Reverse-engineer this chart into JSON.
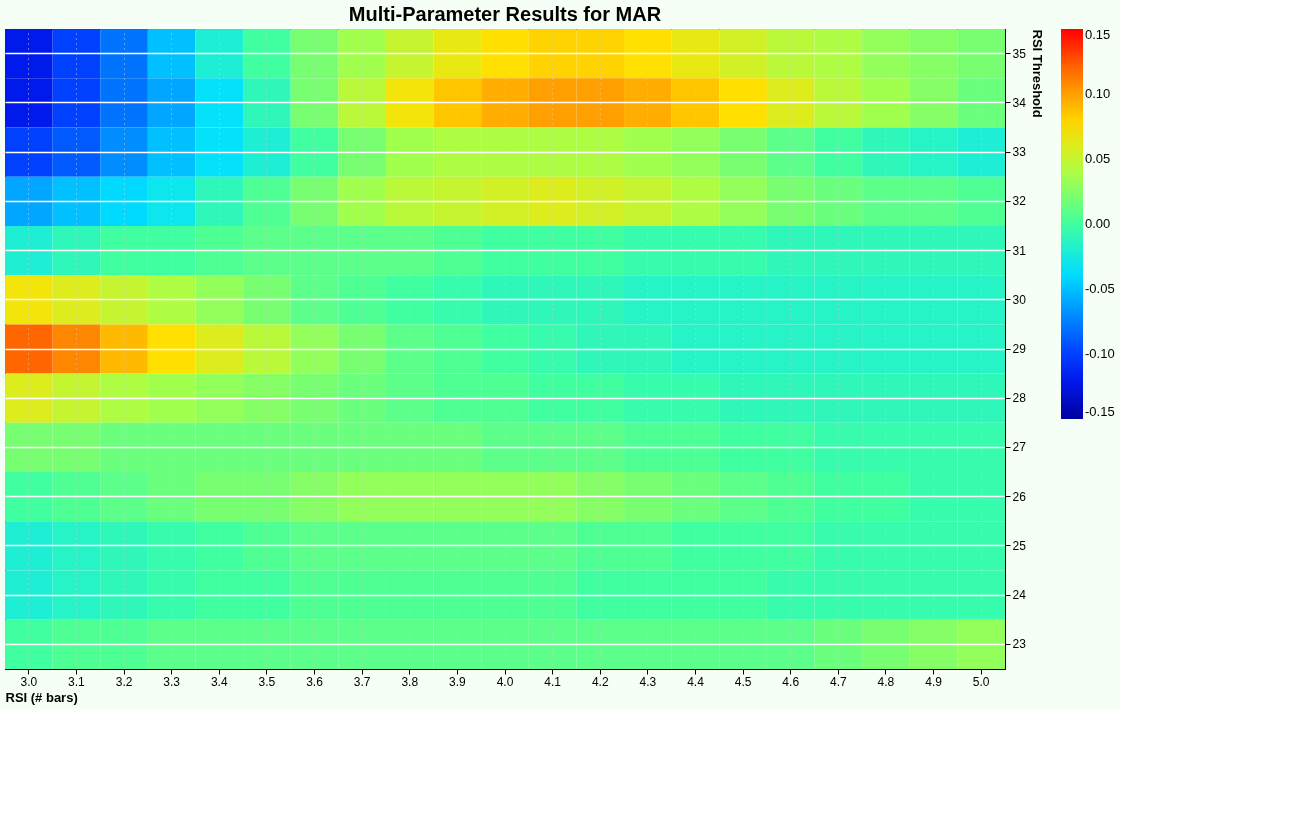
{
  "chart_data": {
    "type": "heatmap",
    "title": "Multi-Parameter Results for MAR",
    "xlabel": "RSI (# bars)",
    "ylabel": "RSI Threshold",
    "categories": [
      "3.0",
      "3.1",
      "3.2",
      "3.3",
      "3.4",
      "3.5",
      "3.6",
      "3.7",
      "3.8",
      "3.9",
      "4.0",
      "4.1",
      "4.2",
      "4.3",
      "4.4",
      "4.5",
      "4.6",
      "4.7",
      "4.8",
      "4.9",
      "5.0"
    ],
    "y_categories": [
      "35",
      "34",
      "33",
      "32",
      "31",
      "30",
      "29",
      "28",
      "27",
      "26",
      "25",
      "24",
      "23"
    ],
    "cells": [
      [
        -0.12,
        -0.1,
        -0.08,
        -0.05,
        -0.02,
        0.0,
        0.02,
        0.035,
        0.05,
        0.065,
        0.075,
        0.08,
        0.08,
        0.075,
        0.065,
        0.055,
        0.045,
        0.04,
        0.03,
        0.025,
        0.02
      ],
      [
        -0.12,
        -0.1,
        -0.08,
        -0.06,
        -0.035,
        -0.01,
        0.02,
        0.045,
        0.07,
        0.085,
        0.095,
        0.1,
        0.1,
        0.095,
        0.085,
        0.075,
        0.06,
        0.045,
        0.035,
        0.025,
        0.015
      ],
      [
        -0.1,
        -0.09,
        -0.07,
        -0.05,
        -0.035,
        -0.02,
        0.0,
        0.02,
        0.035,
        0.04,
        0.04,
        0.04,
        0.04,
        0.035,
        0.03,
        0.02,
        0.01,
        0.0,
        -0.01,
        -0.015,
        -0.02
      ],
      [
        -0.06,
        -0.05,
        -0.04,
        -0.03,
        -0.01,
        0.005,
        0.02,
        0.035,
        0.045,
        0.05,
        0.055,
        0.06,
        0.055,
        0.05,
        0.04,
        0.03,
        0.02,
        0.015,
        0.01,
        0.01,
        0.005
      ],
      [
        -0.02,
        -0.01,
        0.0,
        0.0,
        0.005,
        0.01,
        0.01,
        0.01,
        0.01,
        0.005,
        0.0,
        0.0,
        0.0,
        -0.005,
        -0.005,
        -0.005,
        -0.01,
        -0.01,
        -0.01,
        -0.01,
        -0.01
      ],
      [
        0.07,
        0.06,
        0.05,
        0.04,
        0.03,
        0.02,
        0.01,
        0.005,
        0.0,
        -0.005,
        -0.01,
        -0.01,
        -0.01,
        -0.015,
        -0.015,
        -0.015,
        -0.015,
        -0.015,
        -0.015,
        -0.015,
        -0.015
      ],
      [
        0.12,
        0.11,
        0.09,
        0.075,
        0.06,
        0.045,
        0.03,
        0.02,
        0.01,
        0.005,
        0.0,
        -0.005,
        -0.01,
        -0.01,
        -0.015,
        -0.015,
        -0.015,
        -0.015,
        -0.015,
        -0.015,
        -0.015
      ],
      [
        0.06,
        0.05,
        0.04,
        0.035,
        0.03,
        0.025,
        0.02,
        0.015,
        0.01,
        0.005,
        0.005,
        0.0,
        0.0,
        -0.005,
        -0.005,
        -0.01,
        -0.01,
        -0.01,
        -0.01,
        -0.01,
        -0.01
      ],
      [
        0.02,
        0.02,
        0.015,
        0.015,
        0.015,
        0.015,
        0.015,
        0.015,
        0.015,
        0.015,
        0.01,
        0.01,
        0.01,
        0.005,
        0.005,
        0.0,
        0.0,
        -0.005,
        -0.005,
        -0.005,
        -0.005
      ],
      [
        0.0,
        0.005,
        0.01,
        0.015,
        0.02,
        0.02,
        0.025,
        0.03,
        0.03,
        0.03,
        0.03,
        0.03,
        0.025,
        0.02,
        0.015,
        0.01,
        0.005,
        0.0,
        0.0,
        -0.005,
        -0.005
      ],
      [
        -0.02,
        -0.015,
        -0.01,
        -0.005,
        0.0,
        0.005,
        0.01,
        0.01,
        0.01,
        0.01,
        0.01,
        0.01,
        0.005,
        0.005,
        0.0,
        0.0,
        0.0,
        -0.005,
        -0.005,
        -0.005,
        -0.005
      ],
      [
        -0.02,
        -0.015,
        -0.01,
        -0.005,
        0.0,
        0.0,
        0.005,
        0.005,
        0.005,
        0.005,
        0.005,
        0.005,
        0.0,
        0.0,
        0.0,
        0.0,
        -0.005,
        -0.005,
        -0.005,
        -0.005,
        -0.005
      ],
      [
        0.0,
        0.005,
        0.005,
        0.01,
        0.01,
        0.01,
        0.01,
        0.01,
        0.01,
        0.01,
        0.01,
        0.01,
        0.01,
        0.01,
        0.01,
        0.01,
        0.01,
        0.015,
        0.02,
        0.025,
        0.03
      ]
    ],
    "clim": [
      -0.15,
      0.15
    ],
    "cticks": [
      {
        "value": -0.15,
        "label": "-0.15"
      },
      {
        "value": -0.1,
        "label": "-0.10"
      },
      {
        "value": -0.05,
        "label": "-0.05"
      },
      {
        "value": 0,
        "label": "0.00"
      },
      {
        "value": 0.05,
        "label": "0.05"
      },
      {
        "value": 0.1,
        "label": "0.10"
      },
      {
        "value": 0.15,
        "label": "0.15"
      }
    ],
    "colors": [
      "#0000a0",
      "#0020ff",
      "#0080ff",
      "#00e0ff",
      "#40ffa0",
      "#a8ff48",
      "#ffe000",
      "#ff8000",
      "#ff0000"
    ],
    "grid": true
  }
}
